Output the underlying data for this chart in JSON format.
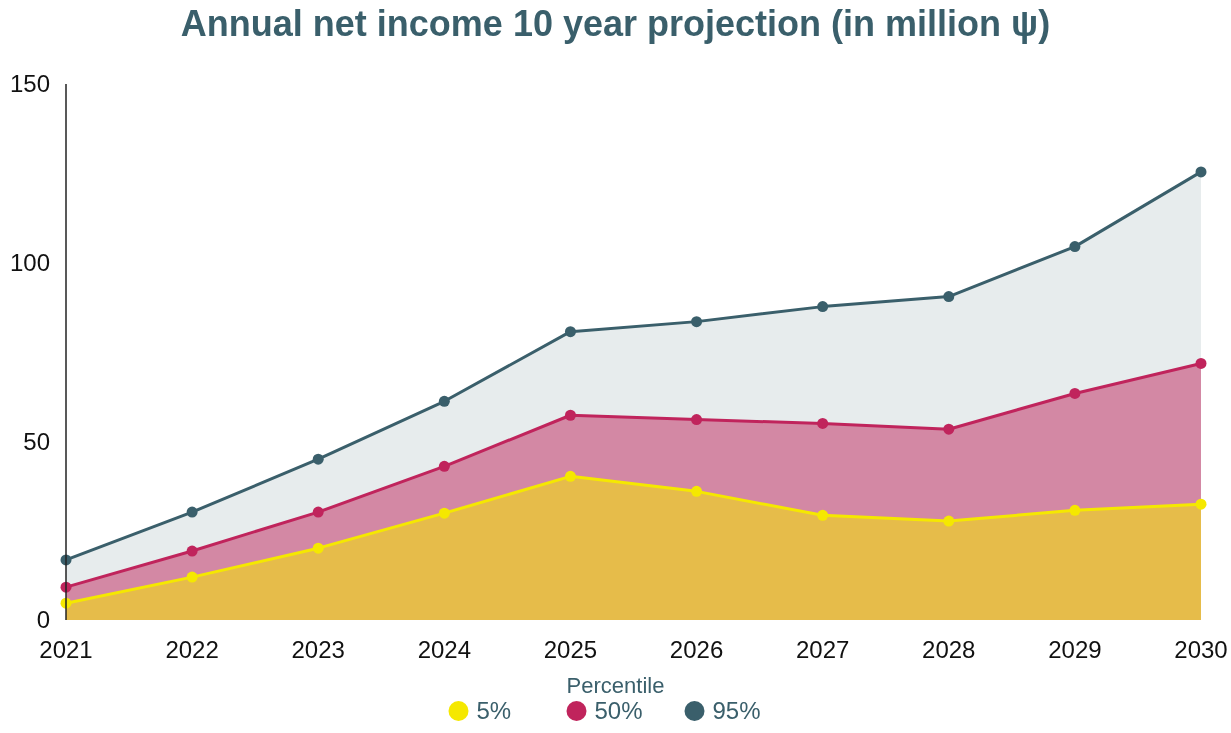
{
  "chart_data": {
    "type": "area",
    "title": "Annual net income 10 year projection (in million ψ)",
    "legend_title": "Percentile",
    "x": [
      2021,
      2022,
      2023,
      2024,
      2025,
      2026,
      2027,
      2028,
      2029,
      2030
    ],
    "xlim": [
      2021,
      2030
    ],
    "xticks": [
      2021,
      2022,
      2023,
      2024,
      2025,
      2026,
      2027,
      2028,
      2029,
      2030
    ],
    "ylim": [
      0,
      150
    ],
    "yticks": [
      0,
      50,
      100,
      150
    ],
    "grid": false,
    "legend": "bottom",
    "marker": "circle",
    "line_style": "solid",
    "series": [
      {
        "name": "95%",
        "color": "#3a5f6b",
        "values": [
          16.8,
          30.2,
          45,
          61.2,
          80.7,
          83.5,
          87.7,
          90.5,
          104.5,
          125.4
        ]
      },
      {
        "name": "50%",
        "color": "#c0245c",
        "values": [
          9.2,
          19.3,
          30.2,
          43,
          57.3,
          56.1,
          55,
          53.4,
          63.4,
          71.8
        ]
      },
      {
        "name": "5%",
        "color": "#f5e800",
        "values": [
          4.7,
          12,
          20.1,
          29.9,
          40.2,
          36,
          29.3,
          27.7,
          30.7,
          32.4
        ]
      }
    ]
  }
}
